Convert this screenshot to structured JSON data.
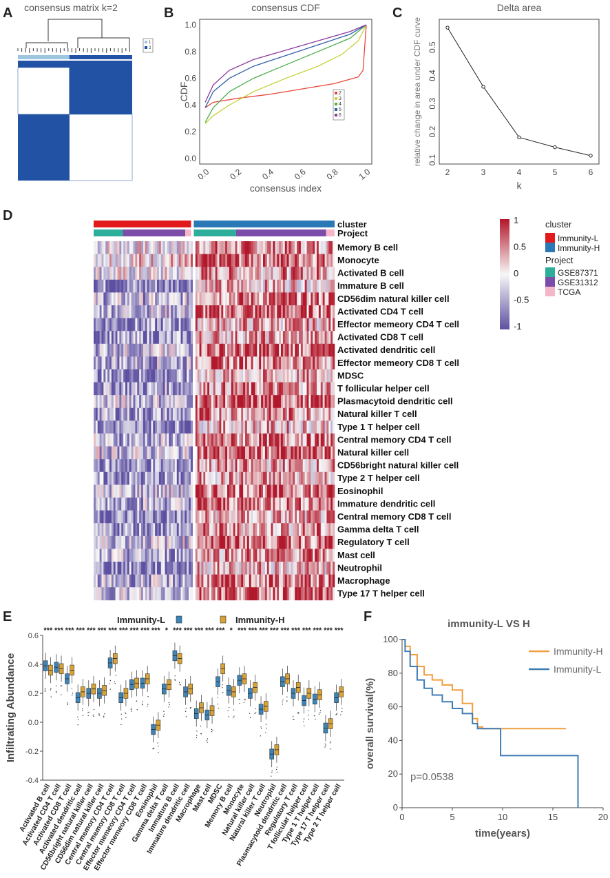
{
  "panel_labels": [
    "A",
    "B",
    "C",
    "D",
    "E",
    "F"
  ],
  "colors": {
    "consensus_dark": "#2152a3",
    "consensus_light": "#ffffff",
    "heat_high": "#b2182b",
    "heat_mid": "#f7f7f7",
    "heat_low": "#5e50a1",
    "immunity_l": "#e31a1c",
    "immunity_h": "#2a78b5",
    "gse87371": "#2cae9a",
    "gse31312": "#7b4ca8",
    "tcga": "#f4b6c8",
    "box_l": "#3d84b8",
    "box_h": "#d9a235",
    "km_h": "#f29d3e",
    "km_l": "#3f7bb5"
  },
  "chart_data": [
    {
      "id": "A",
      "type": "heatmap",
      "title": "consensus matrix k=2",
      "legend": [
        "1",
        "2"
      ],
      "cluster_fraction": 0.45
    },
    {
      "id": "B",
      "type": "line",
      "title": "consensus CDF",
      "xlabel": "consensus index",
      "ylabel": "CDF",
      "xlim": [
        0,
        1
      ],
      "ylim": [
        0,
        1
      ],
      "xticks": [
        "0.0",
        "0.2",
        "0.4",
        "0.6",
        "0.8",
        "1.0"
      ],
      "yticks": [
        "0.0",
        "0.2",
        "0.4",
        "0.6",
        "0.8",
        "1.0"
      ],
      "legend": [
        "2",
        "3",
        "4",
        "5",
        "6"
      ],
      "series": [
        {
          "name": "2",
          "color": "#e8453c",
          "x": [
            0,
            0.05,
            0.2,
            0.4,
            0.6,
            0.8,
            0.95,
            0.98,
            1.0
          ],
          "y": [
            0.38,
            0.42,
            0.45,
            0.48,
            0.52,
            0.56,
            0.61,
            0.66,
            1.0
          ]
        },
        {
          "name": "3",
          "color": "#c8d23a",
          "x": [
            0,
            0.05,
            0.15,
            0.3,
            0.5,
            0.7,
            0.85,
            0.95,
            1.0
          ],
          "y": [
            0.26,
            0.32,
            0.4,
            0.5,
            0.6,
            0.69,
            0.78,
            0.88,
            1.0
          ]
        },
        {
          "name": "4",
          "color": "#4cae4c",
          "x": [
            0,
            0.05,
            0.15,
            0.3,
            0.5,
            0.7,
            0.9,
            1.0
          ],
          "y": [
            0.27,
            0.38,
            0.5,
            0.6,
            0.7,
            0.8,
            0.9,
            1.0
          ]
        },
        {
          "name": "5",
          "color": "#2f5fa8",
          "x": [
            0,
            0.05,
            0.15,
            0.3,
            0.5,
            0.7,
            0.9,
            1.0
          ],
          "y": [
            0.38,
            0.5,
            0.6,
            0.69,
            0.77,
            0.85,
            0.93,
            1.0
          ]
        },
        {
          "name": "6",
          "color": "#8b3a9e",
          "x": [
            0,
            0.05,
            0.15,
            0.3,
            0.5,
            0.7,
            0.9,
            1.0
          ],
          "y": [
            0.42,
            0.55,
            0.66,
            0.74,
            0.81,
            0.88,
            0.95,
            1.0
          ]
        }
      ]
    },
    {
      "id": "C",
      "type": "line",
      "title": "Delta area",
      "xlabel": "k",
      "ylabel": "relative change in area under CDF curve",
      "x": [
        2,
        3,
        4,
        5,
        6
      ],
      "y": [
        0.57,
        0.36,
        0.18,
        0.145,
        0.115
      ],
      "xlim": [
        2,
        6
      ],
      "ylim": [
        0.1,
        0.58
      ],
      "xticks": [
        "2",
        "3",
        "4",
        "5",
        "6"
      ],
      "yticks": [
        "0.1",
        "0.2",
        "0.3",
        "0.4",
        "0.5"
      ]
    },
    {
      "id": "D",
      "type": "heatmap",
      "annotation_labels": [
        "cluster",
        "Project"
      ],
      "rows": [
        "Memory B cell",
        "Monocyte",
        "Activated B cell",
        "Immature  B cell",
        "CD56dim natural killer cell",
        "Activated CD4 T cell",
        "Effector memeory CD4 T cell",
        "Activated CD8 T cell",
        "Activated dendritic cell",
        "Effector memeory CD8 T cell",
        "MDSC",
        "T follicular helper cell",
        "Plasmacytoid dendritic cell",
        "Natural killer T cell",
        "Type 1 T helper cell",
        "Central memory CD4 T cell",
        "Natural killer cell",
        "CD56bright natural killer cell",
        "Type 2 T helper cell",
        "Eosinophil",
        "Immature dendritic cell",
        "Central memory CD8 T cell",
        "Gamma delta T cell",
        "Regulatory T cell",
        "Mast cell",
        "Neutrophil",
        "Macrophage",
        "Type 17 T helper cell"
      ],
      "colorbar_ticks": [
        "1",
        "0.5",
        "0",
        "-0.5",
        "-1"
      ],
      "legend": {
        "cluster_title": "cluster",
        "cluster": [
          "Immunity-L",
          "Immunity-H"
        ],
        "project_title": "Project",
        "project": [
          "GSE87371",
          "GSE31312",
          "TCGA"
        ]
      },
      "group_fraction": 0.41
    },
    {
      "id": "E",
      "type": "box",
      "ylabel": "Infiltrating Abundance",
      "ylim": [
        -0.4,
        0.6
      ],
      "yticks": [
        "-0.4",
        "-0.2",
        "0.0",
        "0.2",
        "0.4",
        "0.6"
      ],
      "legend": [
        "Immunity-L",
        "Immunity-H"
      ],
      "categories": [
        "Activated B cell",
        "Activated CD4 T cell",
        "Activated CD8 T cell",
        "Activated dendritic cell",
        "CD56bright natural killer cell",
        "CD56dim natural killer cell",
        "Central memory CD4 T cell",
        "Central memory CD8 T cell",
        "Effector memeory CD4 T cell",
        "Effector memeory CD8 T cell",
        "Eosinophil",
        "Gamma delta T cell",
        "Immature  B cell",
        "Immature dendritic cell",
        "Macrophage",
        "Mast cell",
        "MDSC",
        "Memory B cell",
        "Monocyte",
        "Natural killer cell",
        "Natural killer T cell",
        "Neutrophil",
        "Plasmacytoid dendritic cell",
        "Regulatory T cell",
        "T follicular helper cell",
        "Type 1 T helper cell",
        "Type 17 T helper cell",
        "Type 2 T helper cell"
      ],
      "significance": [
        "***",
        "***",
        "***",
        "***",
        "***",
        "***",
        "***",
        "***",
        "***",
        "***",
        "***",
        "*",
        "***",
        "***",
        "***",
        "***",
        "***",
        "*",
        "***",
        "***",
        "***",
        "***",
        "***",
        "***",
        "***",
        "***",
        "***",
        "***"
      ],
      "low_median": [
        0.39,
        0.38,
        0.3,
        0.17,
        0.2,
        0.2,
        0.41,
        0.17,
        0.26,
        0.27,
        -0.05,
        0.23,
        0.46,
        0.21,
        0.06,
        0.05,
        0.28,
        0.22,
        0.29,
        0.2,
        0.09,
        -0.22,
        0.28,
        0.2,
        0.15,
        0.16,
        -0.04,
        0.17
      ],
      "high_median": [
        0.36,
        0.37,
        0.36,
        0.21,
        0.23,
        0.22,
        0.44,
        0.2,
        0.27,
        0.3,
        -0.02,
        0.26,
        0.44,
        0.23,
        0.1,
        0.08,
        0.37,
        0.21,
        0.3,
        0.24,
        0.11,
        -0.19,
        0.3,
        0.24,
        0.2,
        0.19,
        -0.01,
        0.21
      ]
    },
    {
      "id": "F",
      "type": "line",
      "title": "immunity-L VS H",
      "xlabel": "time(years)",
      "ylabel": "overall survival(%)",
      "xlim": [
        0,
        20
      ],
      "ylim": [
        0,
        100
      ],
      "xticks": [
        "0",
        "5",
        "10",
        "15",
        "20"
      ],
      "yticks": [
        "0",
        "20",
        "40",
        "60",
        "80",
        "100"
      ],
      "annotation": "p=0.0538",
      "series": [
        {
          "name": "Immunity-H",
          "x": [
            0,
            0.3,
            0.8,
            1.5,
            2.2,
            3,
            4,
            5,
            6,
            7,
            7.5,
            8,
            16.3
          ],
          "y": [
            100,
            96,
            91,
            84,
            79,
            76,
            73,
            70,
            62,
            53,
            48,
            47,
            47
          ]
        },
        {
          "name": "Immunity-L",
          "x": [
            0,
            0.3,
            0.8,
            1.5,
            2.2,
            3,
            4,
            5,
            6,
            7,
            7.5,
            9.8,
            9.8,
            17.5,
            17.5
          ],
          "y": [
            100,
            93,
            84,
            76,
            71,
            67,
            63,
            59,
            56,
            50,
            47,
            47,
            31,
            31,
            0
          ]
        }
      ]
    }
  ]
}
